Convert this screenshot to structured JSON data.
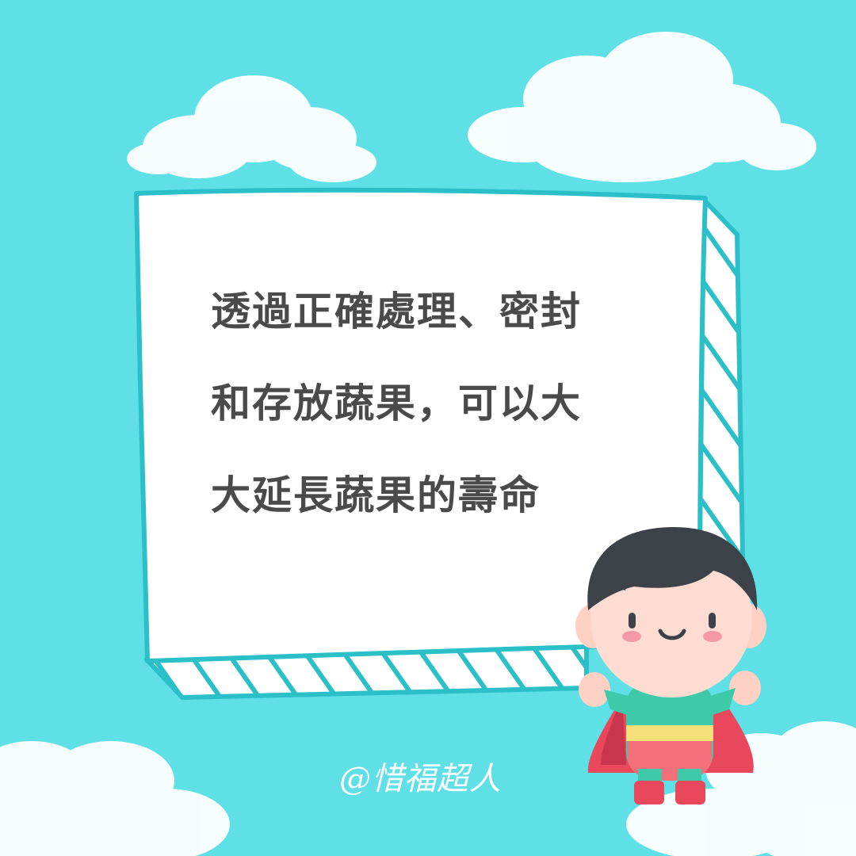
{
  "message": {
    "lines": [
      "透過正確處理、密封",
      "和存放蔬果，可以大",
      "大延長蔬果的壽命"
    ]
  },
  "handle": "@惜福超人",
  "colors": {
    "background": "#5ee0e6",
    "frame_stroke": "#2bbfc7",
    "board": "#ffffff",
    "text": "#4a4a4a"
  }
}
